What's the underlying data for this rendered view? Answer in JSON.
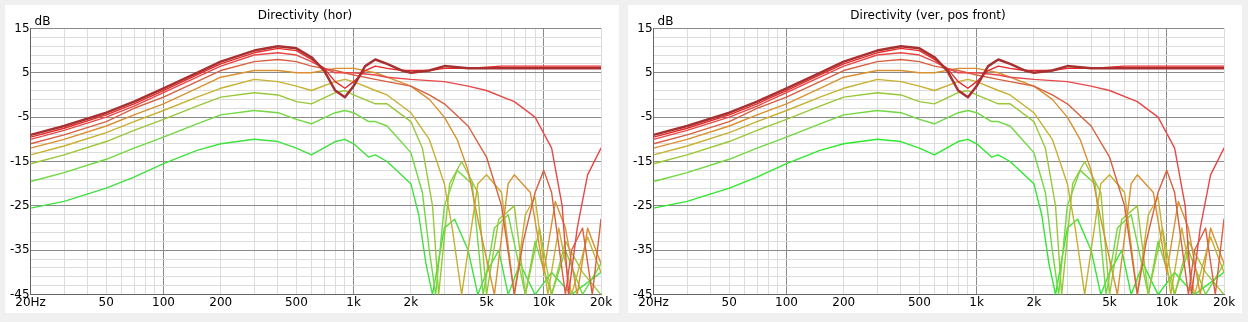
{
  "chart_data": [
    {
      "type": "line",
      "title": "Directivity (hor)",
      "ylabel": "dB",
      "log": "x",
      "grid": true,
      "marker": "none",
      "line_style": "solid",
      "xlim": [
        20,
        20000
      ],
      "xticks": [
        {
          "value": 20,
          "label": "20Hz"
        },
        {
          "value": 30,
          "label": null
        },
        {
          "value": 40,
          "label": null
        },
        50,
        {
          "value": 60,
          "label": null
        },
        {
          "value": 70,
          "label": null
        },
        {
          "value": 80,
          "label": null
        },
        {
          "value": 90,
          "label": null
        },
        100,
        200,
        {
          "value": 300,
          "label": null
        },
        {
          "value": 400,
          "label": null
        },
        500,
        {
          "value": 600,
          "label": null
        },
        {
          "value": 700,
          "label": null
        },
        {
          "value": 800,
          "label": null
        },
        {
          "value": 900,
          "label": null
        },
        {
          "value": 1000,
          "label": "1k"
        },
        {
          "value": 2000,
          "label": "2k"
        },
        {
          "value": 3000,
          "label": null
        },
        {
          "value": 4000,
          "label": null
        },
        {
          "value": 5000,
          "label": "5k"
        },
        {
          "value": 6000,
          "label": null
        },
        {
          "value": 7000,
          "label": null
        },
        {
          "value": 8000,
          "label": null
        },
        {
          "value": 9000,
          "label": null
        },
        {
          "value": 10000,
          "label": "10k"
        },
        {
          "value": 20000,
          "label": "20k"
        }
      ],
      "ylim": [
        -45,
        15
      ],
      "yticks": [
        -45,
        {
          "value": -43,
          "label": null
        },
        {
          "value": -41,
          "label": null
        },
        {
          "value": -39,
          "label": null
        },
        {
          "value": -37,
          "label": null
        },
        -35,
        {
          "value": -33,
          "label": null
        },
        {
          "value": -31,
          "label": null
        },
        {
          "value": -29,
          "label": null
        },
        {
          "value": -27,
          "label": null
        },
        -25,
        {
          "value": -23,
          "label": null
        },
        {
          "value": -21,
          "label": null
        },
        {
          "value": -19,
          "label": null
        },
        {
          "value": -17,
          "label": null
        },
        -15,
        {
          "value": -13,
          "label": null
        },
        {
          "value": -11,
          "label": null
        },
        {
          "value": -9,
          "label": null
        },
        {
          "value": -7,
          "label": null
        },
        -5,
        {
          "value": -3,
          "label": null
        },
        {
          "value": -1,
          "label": null
        },
        {
          "value": 1,
          "label": null
        },
        {
          "value": 3,
          "label": null
        },
        5,
        {
          "value": 7,
          "label": null
        },
        {
          "value": 9,
          "label": null
        },
        {
          "value": 11,
          "label": null
        },
        {
          "value": 13,
          "label": null
        },
        15
      ],
      "series": [
        {
          "color": "#a83030",
          "x": [
            20,
            30,
            50,
            70,
            100,
            150,
            200,
            300,
            400,
            500,
            600,
            700,
            800,
            900,
            1000,
            1150,
            1300,
            1500,
            1800,
            2000,
            2500,
            3000,
            4000,
            6000,
            10000,
            20000
          ],
          "values": [
            -9,
            -7,
            -4,
            -1.5,
            1.5,
            5,
            7.5,
            10,
            11,
            10.5,
            8.5,
            5.5,
            1,
            -0.5,
            2,
            6.5,
            8,
            7,
            5.5,
            5,
            5.5,
            6.5,
            6,
            6,
            6,
            6
          ]
        },
        {
          "color": "#e82828",
          "x": [
            20,
            30,
            50,
            70,
            100,
            150,
            200,
            300,
            400,
            500,
            600,
            700,
            800,
            900,
            1000,
            1150,
            1300,
            1500,
            1800,
            2000,
            2500,
            3000,
            4000,
            6000,
            10000,
            20000
          ],
          "values": [
            -9.5,
            -7.5,
            -4.5,
            -2,
            1,
            4.5,
            7,
            9.5,
            10.5,
            10,
            8,
            6,
            3,
            1.5,
            3,
            5.5,
            6.5,
            6,
            5.5,
            5.5,
            5.5,
            6,
            6,
            6.5,
            6.5,
            6.5
          ]
        },
        {
          "color": "#e84848",
          "x": [
            20,
            30,
            50,
            70,
            100,
            150,
            200,
            300,
            400,
            500,
            600,
            700,
            800,
            1000,
            1300,
            1500,
            2000,
            3000,
            4000,
            5000,
            7000,
            9000,
            11000,
            12500,
            13500,
            15000,
            17000,
            20000
          ],
          "values": [
            -10,
            -8,
            -5,
            -2.5,
            0.5,
            4,
            6.5,
            9,
            9.5,
            9,
            7.5,
            6,
            5,
            5,
            4.5,
            4,
            3.5,
            3,
            2,
            1,
            -1.5,
            -5,
            -12,
            -25,
            -45,
            -30,
            -18,
            -12
          ]
        },
        {
          "color": "#d86040",
          "x": [
            20,
            30,
            50,
            70,
            100,
            150,
            200,
            300,
            400,
            500,
            600,
            800,
            1000,
            1300,
            1500,
            2000,
            2500,
            3000,
            4000,
            5000,
            6000,
            7000,
            7800,
            9000,
            10000,
            11000,
            13000,
            14000,
            16000,
            18000,
            20000
          ],
          "values": [
            -11,
            -9,
            -6,
            -3,
            -0.5,
            3,
            5.5,
            7.5,
            8,
            7.5,
            6.5,
            5.5,
            4.5,
            3.5,
            3,
            2,
            0,
            -2,
            -7,
            -14,
            -25,
            -45,
            -33,
            -22,
            -17,
            -22,
            -45,
            -35,
            -30,
            -45,
            -28
          ]
        },
        {
          "color": "#d89030",
          "x": [
            20,
            30,
            50,
            70,
            100,
            150,
            200,
            300,
            400,
            500,
            600,
            800,
            1000,
            1300,
            1500,
            2000,
            2500,
            3000,
            3500,
            4000,
            4500,
            5500,
            6500,
            7000,
            8500,
            10000,
            11500,
            13000,
            15000,
            17000,
            20000
          ],
          "values": [
            -12,
            -10,
            -7,
            -4.5,
            -2,
            1.5,
            4,
            5.5,
            5.5,
            5,
            5,
            6,
            6,
            5,
            4,
            2,
            -1,
            -5,
            -10,
            -17,
            -28,
            -45,
            -20,
            -18,
            -22,
            -40,
            -24,
            -30,
            -45,
            -30,
            -38
          ]
        },
        {
          "color": "#c8b030",
          "x": [
            20,
            30,
            50,
            70,
            100,
            150,
            200,
            300,
            400,
            500,
            600,
            800,
            900,
            1000,
            1300,
            1500,
            2000,
            2500,
            3000,
            3300,
            3700,
            4500,
            5000,
            6000,
            7000,
            8000,
            9000,
            10500,
            12000,
            14000,
            17000,
            20000
          ],
          "values": [
            -13.5,
            -11.5,
            -8.5,
            -6,
            -3.5,
            -0.5,
            1.5,
            3.5,
            3,
            2,
            1,
            3,
            3.5,
            3,
            1,
            0,
            -4,
            -10,
            -20,
            -30,
            -45,
            -20,
            -18,
            -22,
            -45,
            -27,
            -23,
            -45,
            -30,
            -45,
            -32,
            -40
          ]
        },
        {
          "color": "#98c838",
          "x": [
            20,
            30,
            50,
            70,
            100,
            150,
            200,
            300,
            400,
            500,
            600,
            800,
            900,
            1000,
            1300,
            1500,
            2000,
            2300,
            2600,
            2800,
            3200,
            3700,
            4500,
            5000,
            5800,
            7000,
            8000,
            9500,
            11000,
            13000,
            16000,
            20000
          ],
          "values": [
            -15.5,
            -13.5,
            -10.5,
            -8,
            -5.5,
            -2.5,
            -0.5,
            0.5,
            0,
            -1.5,
            -2,
            0.5,
            1,
            0,
            -2,
            -2,
            -6,
            -12,
            -25,
            -45,
            -20,
            -15,
            -22,
            -45,
            -28,
            -25,
            -45,
            -30,
            -45,
            -33,
            -40,
            -45
          ]
        },
        {
          "color": "#70d840",
          "x": [
            20,
            30,
            50,
            70,
            100,
            150,
            200,
            300,
            400,
            500,
            600,
            800,
            900,
            1000,
            1200,
            1300,
            1500,
            2000,
            2300,
            2500,
            2700,
            3000,
            3500,
            4200,
            4800,
            5500,
            6500,
            8000,
            9000,
            11000,
            13000,
            16000,
            20000
          ],
          "values": [
            -19.5,
            -17.5,
            -14.5,
            -12,
            -9.5,
            -6.5,
            -4.5,
            -3.5,
            -4,
            -5.5,
            -6.5,
            -4,
            -3.5,
            -4,
            -6,
            -6,
            -7,
            -13,
            -22,
            -35,
            -45,
            -25,
            -17,
            -20,
            -45,
            -30,
            -27,
            -45,
            -33,
            -45,
            -35,
            -45,
            -38
          ]
        },
        {
          "color": "#40e040",
          "x": [
            20,
            30,
            50,
            70,
            100,
            150,
            200,
            300,
            400,
            500,
            600,
            800,
            900,
            1000,
            1200,
            1300,
            1500,
            2000,
            2200,
            2400,
            2600,
            3000,
            3400,
            4000,
            4500,
            5000,
            5800,
            6500,
            7500,
            9000,
            11000,
            14000,
            20000
          ],
          "values": [
            -25.5,
            -24,
            -21,
            -18.5,
            -15.5,
            -12.5,
            -11,
            -10,
            -10.5,
            -12,
            -13.5,
            -10.5,
            -10,
            -11,
            -14,
            -13.5,
            -15,
            -20,
            -27,
            -38,
            -45,
            -30,
            -28,
            -35,
            -45,
            -40,
            -35,
            -45,
            -38,
            -45,
            -40,
            -45,
            -40
          ]
        }
      ]
    },
    {
      "type": "line",
      "title": "Directivity (ver, pos front)",
      "ylabel": "dB",
      "log": "x",
      "grid": true,
      "marker": "none",
      "line_style": "solid",
      "xlim": [
        20,
        20000
      ],
      "xticks": [
        {
          "value": 20,
          "label": "20Hz"
        },
        {
          "value": 30,
          "label": null
        },
        {
          "value": 40,
          "label": null
        },
        50,
        {
          "value": 60,
          "label": null
        },
        {
          "value": 70,
          "label": null
        },
        {
          "value": 80,
          "label": null
        },
        {
          "value": 90,
          "label": null
        },
        100,
        200,
        {
          "value": 300,
          "label": null
        },
        {
          "value": 400,
          "label": null
        },
        500,
        {
          "value": 600,
          "label": null
        },
        {
          "value": 700,
          "label": null
        },
        {
          "value": 800,
          "label": null
        },
        {
          "value": 900,
          "label": null
        },
        {
          "value": 1000,
          "label": "1k"
        },
        {
          "value": 2000,
          "label": "2k"
        },
        {
          "value": 3000,
          "label": null
        },
        {
          "value": 4000,
          "label": null
        },
        {
          "value": 5000,
          "label": "5k"
        },
        {
          "value": 6000,
          "label": null
        },
        {
          "value": 7000,
          "label": null
        },
        {
          "value": 8000,
          "label": null
        },
        {
          "value": 9000,
          "label": null
        },
        {
          "value": 10000,
          "label": "10k"
        },
        {
          "value": 20000,
          "label": "20k"
        }
      ],
      "ylim": [
        -45,
        15
      ],
      "yticks": [
        -45,
        {
          "value": -43,
          "label": null
        },
        {
          "value": -41,
          "label": null
        },
        {
          "value": -39,
          "label": null
        },
        {
          "value": -37,
          "label": null
        },
        -35,
        {
          "value": -33,
          "label": null
        },
        {
          "value": -31,
          "label": null
        },
        {
          "value": -29,
          "label": null
        },
        {
          "value": -27,
          "label": null
        },
        -25,
        {
          "value": -23,
          "label": null
        },
        {
          "value": -21,
          "label": null
        },
        {
          "value": -19,
          "label": null
        },
        {
          "value": -17,
          "label": null
        },
        -15,
        {
          "value": -13,
          "label": null
        },
        {
          "value": -11,
          "label": null
        },
        {
          "value": -9,
          "label": null
        },
        {
          "value": -7,
          "label": null
        },
        -5,
        {
          "value": -3,
          "label": null
        },
        {
          "value": -1,
          "label": null
        },
        {
          "value": 1,
          "label": null
        },
        {
          "value": 3,
          "label": null
        },
        5,
        {
          "value": 7,
          "label": null
        },
        {
          "value": 9,
          "label": null
        },
        {
          "value": 11,
          "label": null
        },
        {
          "value": 13,
          "label": null
        },
        15
      ],
      "series": [
        {
          "color": "#a83030",
          "x": [
            20,
            30,
            50,
            70,
            100,
            150,
            200,
            300,
            400,
            500,
            600,
            700,
            800,
            900,
            1000,
            1150,
            1300,
            1500,
            1800,
            2000,
            2500,
            3000,
            4000,
            6000,
            10000,
            20000
          ],
          "values": [
            -9,
            -7,
            -4,
            -1.5,
            1.5,
            5,
            7.5,
            10,
            11,
            10.5,
            8.5,
            5.5,
            1,
            -0.5,
            2,
            6.5,
            8,
            7,
            5.5,
            5,
            5.5,
            6.5,
            6,
            6,
            6,
            6
          ]
        },
        {
          "color": "#e82828",
          "x": [
            20,
            30,
            50,
            70,
            100,
            150,
            200,
            300,
            400,
            500,
            600,
            700,
            800,
            900,
            1000,
            1150,
            1300,
            1500,
            1800,
            2000,
            2500,
            3000,
            4000,
            6000,
            10000,
            20000
          ],
          "values": [
            -9.5,
            -7.5,
            -4.5,
            -2,
            1,
            4.5,
            7,
            9.5,
            10.5,
            10,
            8,
            6,
            3,
            1.5,
            3,
            5.5,
            6.5,
            6,
            5.5,
            5.5,
            5.5,
            6,
            6,
            6.5,
            6.5,
            6.5
          ]
        },
        {
          "color": "#e84848",
          "x": [
            20,
            30,
            50,
            70,
            100,
            150,
            200,
            300,
            400,
            500,
            600,
            700,
            800,
            1000,
            1300,
            1500,
            2000,
            3000,
            4000,
            5000,
            7000,
            9000,
            11000,
            12500,
            13500,
            15000,
            17000,
            20000
          ],
          "values": [
            -10,
            -8,
            -5,
            -2.5,
            0.5,
            4,
            6.5,
            9,
            9.5,
            9,
            7.5,
            6,
            5,
            5,
            4.5,
            4,
            3.5,
            3,
            2,
            1,
            -1.5,
            -5,
            -12,
            -25,
            -45,
            -30,
            -18,
            -12
          ]
        },
        {
          "color": "#d86040",
          "x": [
            20,
            30,
            50,
            70,
            100,
            150,
            200,
            300,
            400,
            500,
            600,
            800,
            1000,
            1300,
            1500,
            2000,
            2500,
            3000,
            4000,
            5000,
            6000,
            7000,
            7800,
            9000,
            10000,
            11000,
            13000,
            14000,
            16000,
            18000,
            20000
          ],
          "values": [
            -11,
            -9,
            -6,
            -3,
            -0.5,
            3,
            5.5,
            7.5,
            8,
            7.5,
            6.5,
            5.5,
            4.5,
            3.5,
            3,
            2,
            0,
            -2,
            -7,
            -14,
            -25,
            -45,
            -33,
            -22,
            -17,
            -22,
            -45,
            -35,
            -30,
            -45,
            -28
          ]
        },
        {
          "color": "#d89030",
          "x": [
            20,
            30,
            50,
            70,
            100,
            150,
            200,
            300,
            400,
            500,
            600,
            800,
            1000,
            1300,
            1500,
            2000,
            2500,
            3000,
            3500,
            4000,
            4500,
            5500,
            6500,
            7000,
            8500,
            10000,
            11500,
            13000,
            15000,
            17000,
            20000
          ],
          "values": [
            -12,
            -10,
            -7,
            -4.5,
            -2,
            1.5,
            4,
            5.5,
            5.5,
            5,
            5,
            6,
            6,
            5,
            4,
            2,
            -1,
            -5,
            -10,
            -17,
            -28,
            -45,
            -20,
            -18,
            -22,
            -40,
            -24,
            -30,
            -45,
            -30,
            -38
          ]
        },
        {
          "color": "#c8b030",
          "x": [
            20,
            30,
            50,
            70,
            100,
            150,
            200,
            300,
            400,
            500,
            600,
            800,
            900,
            1000,
            1300,
            1500,
            2000,
            2500,
            3000,
            3300,
            3700,
            4500,
            5000,
            6000,
            7000,
            8000,
            9000,
            10500,
            12000,
            14000,
            17000,
            20000
          ],
          "values": [
            -13.5,
            -11.5,
            -8.5,
            -6,
            -3.5,
            -0.5,
            1.5,
            3.5,
            3,
            2,
            1,
            3,
            3.5,
            3,
            1,
            0,
            -4,
            -10,
            -20,
            -30,
            -45,
            -20,
            -18,
            -22,
            -45,
            -27,
            -23,
            -45,
            -30,
            -45,
            -32,
            -40
          ]
        },
        {
          "color": "#98c838",
          "x": [
            20,
            30,
            50,
            70,
            100,
            150,
            200,
            300,
            400,
            500,
            600,
            800,
            900,
            1000,
            1300,
            1500,
            2000,
            2300,
            2600,
            2800,
            3200,
            3700,
            4500,
            5000,
            5800,
            7000,
            8000,
            9500,
            11000,
            13000,
            16000,
            20000
          ],
          "values": [
            -15.5,
            -13.5,
            -10.5,
            -8,
            -5.5,
            -2.5,
            -0.5,
            0.5,
            0,
            -1.5,
            -2,
            0.5,
            1,
            0,
            -2,
            -2,
            -6,
            -12,
            -25,
            -45,
            -20,
            -15,
            -22,
            -45,
            -28,
            -25,
            -45,
            -30,
            -45,
            -33,
            -40,
            -45
          ]
        },
        {
          "color": "#70d840",
          "x": [
            20,
            30,
            50,
            70,
            100,
            150,
            200,
            300,
            400,
            500,
            600,
            800,
            900,
            1000,
            1200,
            1300,
            1500,
            2000,
            2300,
            2500,
            2700,
            3000,
            3500,
            4200,
            4800,
            5500,
            6500,
            8000,
            9000,
            11000,
            13000,
            16000,
            20000
          ],
          "values": [
            -19.5,
            -17.5,
            -14.5,
            -12,
            -9.5,
            -6.5,
            -4.5,
            -3.5,
            -4,
            -5.5,
            -6.5,
            -4,
            -3.5,
            -4,
            -6,
            -6,
            -7,
            -13,
            -22,
            -35,
            -45,
            -25,
            -17,
            -20,
            -45,
            -30,
            -27,
            -45,
            -33,
            -45,
            -35,
            -45,
            -38
          ]
        },
        {
          "color": "#30e830",
          "x": [
            20,
            30,
            50,
            70,
            100,
            150,
            200,
            300,
            400,
            500,
            600,
            800,
            900,
            1000,
            1200,
            1300,
            1500,
            2000,
            2200,
            2400,
            2600,
            3000,
            3400,
            4000,
            4500,
            5000,
            5800,
            6500,
            7500,
            9000,
            11000,
            14000,
            20000
          ],
          "values": [
            -25.5,
            -24,
            -21,
            -18.5,
            -15.5,
            -12.5,
            -11,
            -10,
            -10.5,
            -12,
            -13.5,
            -10.5,
            -10,
            -11,
            -14,
            -13.5,
            -15,
            -20,
            -27,
            -38,
            -45,
            -30,
            -28,
            -35,
            -45,
            -40,
            -35,
            -45,
            -38,
            -45,
            -40,
            -45,
            -40
          ]
        }
      ]
    }
  ]
}
